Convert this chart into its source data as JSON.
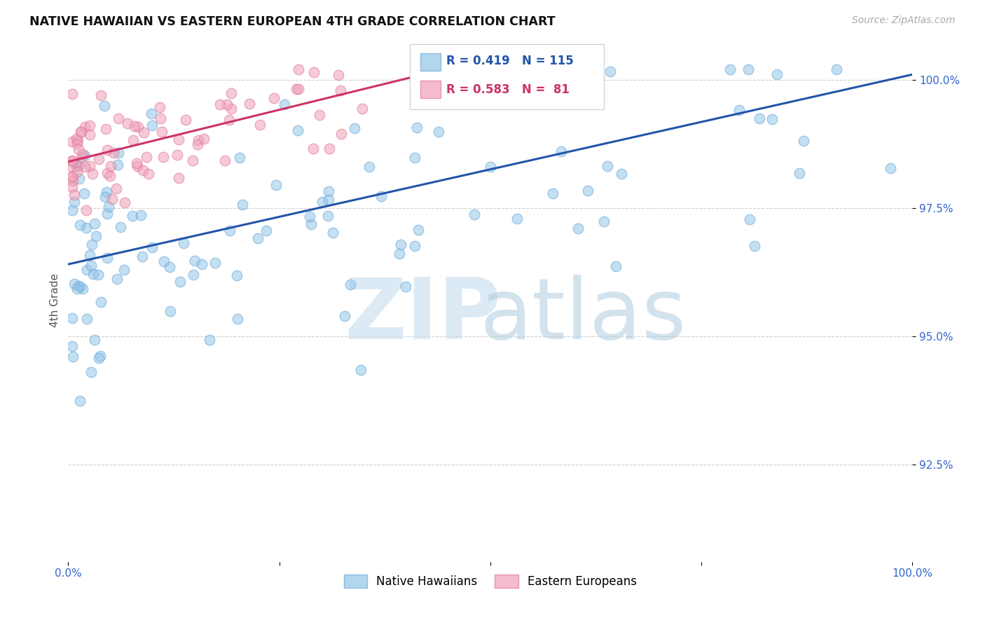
{
  "title": "NATIVE HAWAIIAN VS EASTERN EUROPEAN 4TH GRADE CORRELATION CHART",
  "source": "Source: ZipAtlas.com",
  "ylabel": "4th Grade",
  "blue_R": 0.419,
  "blue_N": 115,
  "pink_R": 0.583,
  "pink_N": 81,
  "blue_color": "#92c5e8",
  "pink_color": "#f0a0b8",
  "blue_edge_color": "#6fa8d8",
  "pink_edge_color": "#e07898",
  "blue_line_color": "#2255aa",
  "pink_line_color": "#cc3366",
  "legend_label_blue": "Native Hawaiians",
  "legend_label_pink": "Eastern Europeans",
  "background_color": "#ffffff",
  "xlim": [
    0.0,
    1.0
  ],
  "ylim": [
    0.906,
    1.008
  ],
  "yticks": [
    0.925,
    0.95,
    0.975,
    1.0
  ],
  "ytick_labels": [
    "92.5%",
    "95.0%",
    "97.5%",
    "100.0%"
  ],
  "blue_line_x0": 0.0,
  "blue_line_x1": 1.0,
  "blue_line_y0": 0.964,
  "blue_line_y1": 1.001,
  "pink_line_x0": 0.0,
  "pink_line_x1": 0.42,
  "pink_line_y0": 0.984,
  "pink_line_y1": 1.001
}
